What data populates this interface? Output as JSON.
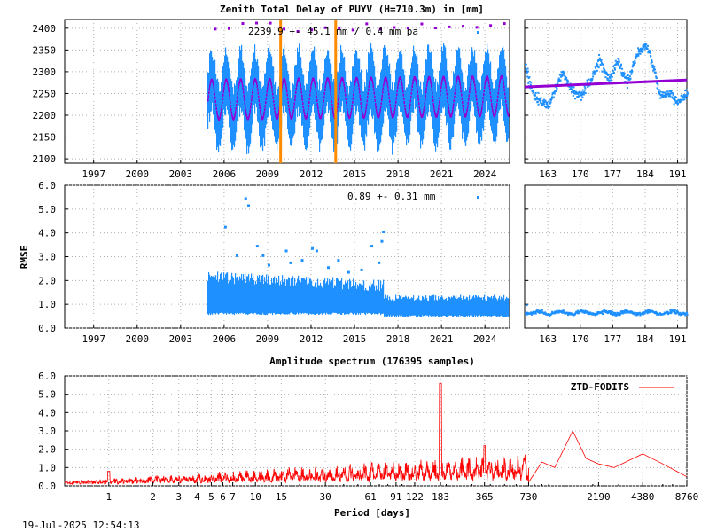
{
  "page": {
    "title": "Zenith Total Delay of PUYV (H=710.3m) in [mm]",
    "footer_timestamp": "19-Jul-2025 12:54:13"
  },
  "colors": {
    "series": "#1e90ff",
    "fit": "#9400d3",
    "event": "#ff8c00",
    "spectrum": "#ff0000"
  },
  "chart_data": [
    {
      "id": "ztd_main",
      "type": "scatter",
      "title": "Zenith Total Delay of PUYV (H=710.3m) in [mm]",
      "annotation": "2239.9 +-  45.1 mm /  0.4 mm pa",
      "ylabel": "",
      "xlim": [
        1995.0,
        2025.7
      ],
      "ylim": [
        2090,
        2420
      ],
      "x_ticks": [
        "1997",
        "2000",
        "2003",
        "2006",
        "2009",
        "2012",
        "2015",
        "2018",
        "2021",
        "2024"
      ],
      "x_tick_values": [
        1997,
        2000,
        2003,
        2006,
        2009,
        2012,
        2015,
        2018,
        2021,
        2024
      ],
      "y_ticks": [
        "2100",
        "2150",
        "2200",
        "2250",
        "2300",
        "2350",
        "2400"
      ],
      "y_tick_values": [
        2100,
        2150,
        2200,
        2250,
        2300,
        2350,
        2400
      ],
      "data_start": 2004.85,
      "data_end": 2025.55,
      "mean": 2239.9,
      "seasonal_amplitude": 45.1,
      "trend_per_year": 0.4,
      "event_lines": [
        2009.9,
        2013.7
      ],
      "series": [
        {
          "role": "observations"
        },
        {
          "role": "seasonal-fit"
        }
      ]
    },
    {
      "id": "ztd_zoom",
      "type": "scatter",
      "xlim": [
        158,
        193
      ],
      "ylim": [
        2090,
        2420
      ],
      "x_ticks": [
        "163",
        "170",
        "177",
        "184",
        "191"
      ],
      "x_tick_values": [
        163,
        170,
        177,
        184,
        191
      ],
      "fit_start": 2265,
      "fit_end": 2281
    },
    {
      "id": "rmse_main",
      "type": "scatter",
      "annotation": "0.89 +-  0.31 mm",
      "ylabel": "RMSE",
      "xlim": [
        1995.0,
        2025.7
      ],
      "ylim": [
        0,
        6
      ],
      "x_ticks": [
        "1997",
        "2000",
        "2003",
        "2006",
        "2009",
        "2012",
        "2015",
        "2018",
        "2021",
        "2024"
      ],
      "x_tick_values": [
        1997,
        2000,
        2003,
        2006,
        2009,
        2012,
        2015,
        2018,
        2021,
        2024
      ],
      "y_ticks": [
        "0.0",
        "1.0",
        "2.0",
        "3.0",
        "4.0",
        "5.0",
        "6.0"
      ],
      "y_tick_values": [
        0,
        1,
        2,
        3,
        4,
        5,
        6
      ],
      "mean": 0.89,
      "std": 0.31
    },
    {
      "id": "rmse_zoom",
      "type": "scatter",
      "xlim": [
        158,
        193
      ],
      "ylim": [
        0,
        6
      ],
      "x_ticks": [
        "163",
        "170",
        "177",
        "184",
        "191"
      ],
      "x_tick_values": [
        163,
        170,
        177,
        184,
        191
      ]
    },
    {
      "id": "spectrum",
      "type": "line",
      "title": "Amplitude spectrum (176395 samples)",
      "xlabel": "Period [days]",
      "legend": "ZTD-FODITS",
      "legend_position": "top-right",
      "x_scale": "log",
      "xlim": [
        0.5,
        8760
      ],
      "ylim": [
        0,
        6
      ],
      "x_ticks": [
        "1",
        "2",
        "3",
        "4",
        "5",
        "6",
        "7",
        "10",
        "15",
        "30",
        "61",
        "91",
        "122",
        "183",
        "365",
        "730",
        "2190",
        "4380",
        "8760"
      ],
      "x_tick_values": [
        1,
        2,
        3,
        4,
        5,
        6,
        7,
        10,
        15,
        30,
        61,
        91,
        122,
        183,
        365,
        730,
        2190,
        4380,
        8760
      ],
      "y_ticks": [
        "0.0",
        "1.0",
        "2.0",
        "3.0",
        "4.0",
        "5.0",
        "6.0"
      ],
      "y_tick_values": [
        0,
        1,
        2,
        3,
        4,
        5,
        6
      ],
      "peaks": [
        {
          "period": 1,
          "amplitude": 0.8
        },
        {
          "period": 183,
          "amplitude": 5.6
        },
        {
          "period": 365,
          "amplitude": 2.8
        },
        {
          "period": 1460,
          "amplitude": 3.0
        },
        {
          "period": 4380,
          "amplitude": 1.75
        }
      ]
    }
  ]
}
